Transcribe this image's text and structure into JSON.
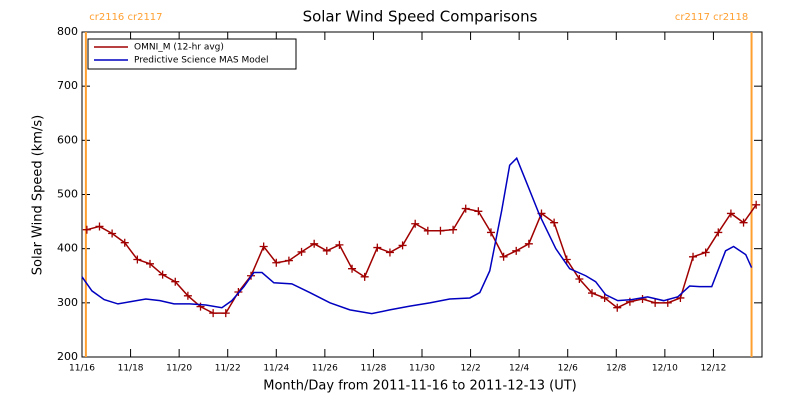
{
  "chart_data": {
    "type": "line",
    "title": "Solar Wind Speed Comparisons",
    "x_label": "Month/Day from 2011-11-16 to 2011-12-13 (UT)",
    "y_label": "Solar Wind Speed (km/s)",
    "xlim": [
      0,
      28
    ],
    "ylim": [
      200,
      800
    ],
    "xticks": [
      {
        "value": 0,
        "label": "11/16"
      },
      {
        "value": 2,
        "label": "11/18"
      },
      {
        "value": 4,
        "label": "11/20"
      },
      {
        "value": 6,
        "label": "11/22"
      },
      {
        "value": 8,
        "label": "11/24"
      },
      {
        "value": 10,
        "label": "11/26"
      },
      {
        "value": 12,
        "label": "11/28"
      },
      {
        "value": 14,
        "label": "11/30"
      },
      {
        "value": 16,
        "label": "12/2"
      },
      {
        "value": 18,
        "label": "12/4"
      },
      {
        "value": 20,
        "label": "12/6"
      },
      {
        "value": 22,
        "label": "12/8"
      },
      {
        "value": 24,
        "label": "12/10"
      },
      {
        "value": 26,
        "label": "12/12"
      }
    ],
    "yticks": [
      200,
      300,
      400,
      500,
      600,
      700,
      800
    ],
    "boundaries": [
      {
        "x": 0.16,
        "label": "cr2116 cr2117",
        "color": "#ff9f30"
      },
      {
        "x": 27.57,
        "label": "cr2117 cr2118",
        "color": "#ff9f30"
      }
    ],
    "legend": "upper left",
    "series": [
      {
        "name": "OMNI_M (12-hr avg)",
        "color": "#a00000",
        "markers": true,
        "x": [
          0.2,
          0.72,
          1.24,
          1.76,
          2.28,
          2.8,
          3.32,
          3.84,
          4.36,
          4.88,
          5.4,
          5.92,
          6.44,
          6.96,
          7.48,
          8.0,
          8.52,
          9.04,
          9.56,
          10.08,
          10.6,
          11.12,
          11.64,
          12.16,
          12.68,
          13.2,
          13.72,
          14.24,
          14.76,
          15.28,
          15.8,
          16.32,
          16.84,
          17.36,
          17.88,
          18.4,
          18.92,
          19.44,
          19.96,
          20.48,
          21.0,
          21.52,
          22.04,
          22.56,
          23.08,
          23.6,
          24.12,
          24.64,
          25.16,
          25.68,
          26.2,
          26.72,
          27.24,
          27.76
        ],
        "values": [
          435,
          441,
          428,
          411,
          380,
          372,
          352,
          339,
          313,
          293,
          281,
          281,
          320,
          350,
          404,
          374,
          378,
          394,
          409,
          396,
          407,
          363,
          348,
          402,
          393,
          406,
          446,
          433,
          433,
          435,
          474,
          469,
          430,
          385,
          396,
          409,
          465,
          448,
          380,
          344,
          318,
          309,
          291,
          302,
          307,
          300,
          300,
          309,
          385,
          393,
          430,
          465,
          448,
          481
        ]
      },
      {
        "name": "Predictive Science MAS Model",
        "color": "#0000c0",
        "markers": false,
        "x": [
          0,
          0.41,
          0.91,
          1.48,
          1.98,
          2.63,
          3.21,
          3.79,
          4.44,
          5.1,
          5.76,
          6.17,
          6.67,
          7.08,
          7.41,
          7.9,
          8.64,
          9.38,
          10.21,
          11.03,
          11.93,
          12.67,
          13.5,
          14.32,
          15.14,
          15.97,
          16.38,
          16.79,
          17.28,
          17.61,
          17.9,
          18.27,
          18.85,
          19.51,
          20.08,
          20.74,
          21.15,
          21.56,
          22.06,
          22.63,
          23.29,
          23.95,
          24.53,
          25.02,
          25.43,
          25.93,
          26.5,
          26.83,
          27.33,
          27.57
        ],
        "values": [
          348,
          322,
          306,
          298,
          302,
          307,
          304,
          298,
          298,
          296,
          291,
          304,
          330,
          356,
          356,
          337,
          335,
          319,
          300,
          287,
          280,
          287,
          294,
          300,
          307,
          309,
          319,
          359,
          470,
          554,
          567,
          526,
          461,
          400,
          363,
          350,
          339,
          315,
          304,
          306,
          311,
          304,
          311,
          331,
          330,
          330,
          396,
          404,
          389,
          365
        ]
      }
    ]
  }
}
